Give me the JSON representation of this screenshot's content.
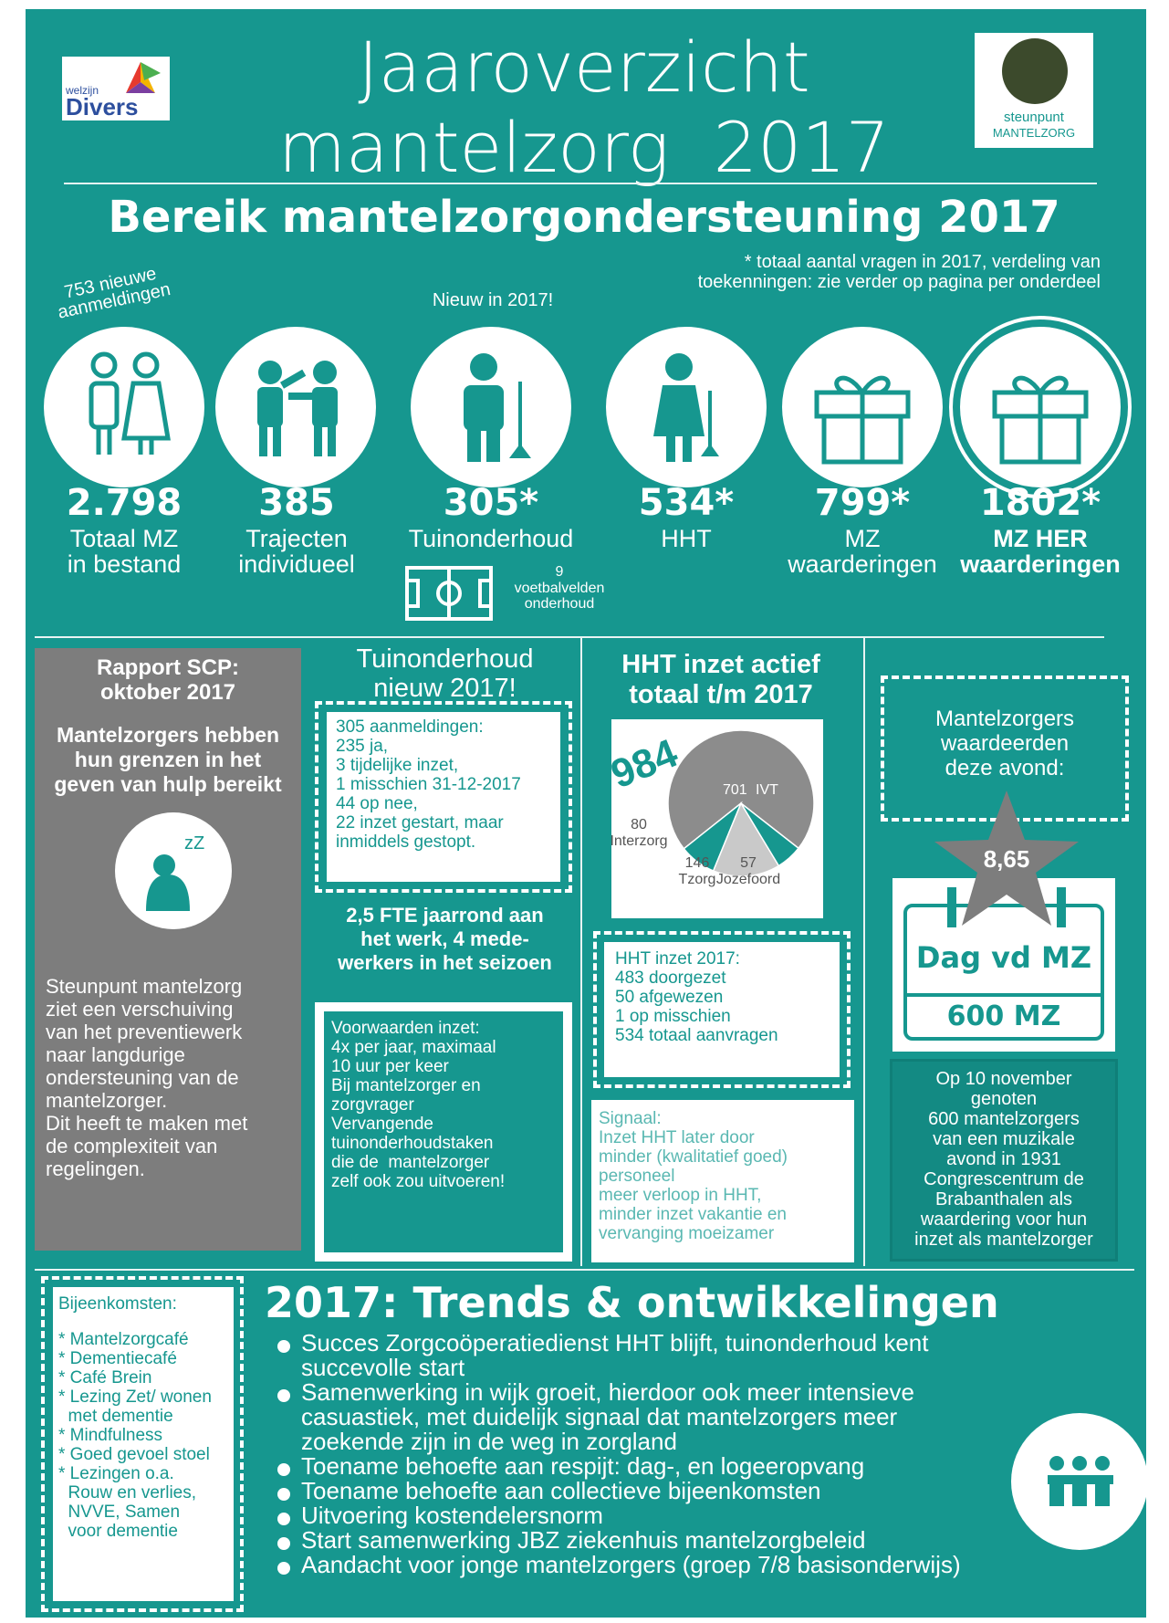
{
  "header": {
    "logo_left": {
      "top": "welzijn",
      "bottom": "Divers"
    },
    "title": [
      "Jaaroverzicht",
      "mantelzorg  2017"
    ],
    "logo_right": {
      "top": "steunpunt",
      "bottom": "MANTELZORG"
    }
  },
  "reach": {
    "title": "Bereik mantelzorgondersteuning  2017",
    "note": [
      "* totaal aantal vragen in 2017, verdeling van",
      "toekenningen: zie verder op pagina per onderdeel"
    ],
    "new_registrations": [
      "753 nieuwe",
      "aanmeldingen"
    ],
    "new_label": "Nieuw in 2017!",
    "stats": [
      {
        "value": "2.798",
        "label": [
          "Totaal MZ",
          "in bestand"
        ]
      },
      {
        "value": "385",
        "label": [
          "Trajecten",
          "individueel"
        ]
      },
      {
        "value": "305*",
        "label": [
          "Tuinonderhoud"
        ]
      },
      {
        "value": "534*",
        "label": [
          "HHT"
        ]
      },
      {
        "value": "799*",
        "label": [
          "MZ",
          "waarderingen"
        ]
      },
      {
        "value": "1802*",
        "label": [
          "MZ HER",
          "waarderingen"
        ]
      }
    ],
    "football": {
      "count": "9",
      "label": [
        "voetbalvelden",
        "onderhoud"
      ]
    }
  },
  "scp": {
    "title": [
      "Rapport SCP:",
      "oktober 2017"
    ],
    "subtitle": [
      "Mantelzorgers hebben",
      "hun grenzen in het",
      "geven van hulp bereikt"
    ],
    "body": [
      "Steunpunt mantelzorg",
      "ziet een verschuiving",
      "van het preventiewerk",
      "naar langdurige",
      "ondersteuning van de",
      "mantelzorger.",
      "Dit heeft te maken met",
      "de complexiteit van",
      "regelingen."
    ]
  },
  "garden": {
    "title": [
      "Tuinonderhoud",
      "nieuw 2017!"
    ],
    "box": [
      "305 aanmeldingen:",
      "",
      "235 ja,",
      "3 tijdelijke inzet,",
      "1 misschien 31-12-2017",
      "44 op nee,",
      "22 inzet gestart, maar",
      "inmiddels gestopt."
    ],
    "fte": [
      "2,5 FTE jaarrond aan",
      "het werk, 4 mede-",
      "werkers in het seizoen"
    ],
    "conditions": [
      "Voorwaarden inzet:",
      "",
      "4x per jaar, maximaal",
      "10 uur per keer",
      "",
      "Bij mantelzorger en",
      "zorgvrager",
      "",
      "Vervangende",
      "tuinonderhoudstaken",
      "die de  mantelzorger",
      "zelf ook zou uitvoeren!"
    ]
  },
  "hht": {
    "title": [
      "HHT inzet actief",
      "totaal t/m 2017"
    ],
    "pie": {
      "total": "984",
      "slices": [
        {
          "value": 701,
          "name": "IVT",
          "color": "#8c8c8c"
        },
        {
          "value": 80,
          "name": "Interzorg",
          "color": "#16978f"
        },
        {
          "value": 146,
          "name": "Tzorg",
          "color": "#c9c9c9"
        },
        {
          "value": 57,
          "name": "Jozefoord",
          "color": "#16978f"
        }
      ]
    },
    "box": [
      "HHT inzet 2017:",
      "483 doorgezet",
      "50 afgewezen",
      "1 op misschien",
      "534 totaal aanvragen"
    ],
    "signal": [
      "Signaal:",
      "Inzet HHT later door",
      "minder (kwalitatief goed)",
      "personeel",
      "meer verloop in HHT,",
      "minder inzet vakantie en",
      "vervanging moeizamer"
    ]
  },
  "evening": {
    "box": [
      "Mantelzorgers",
      "waardeerden",
      "deze avond:"
    ],
    "score": "8,65",
    "calendar": "Dag vd MZ",
    "count": "600 MZ",
    "text": [
      "Op 10 november",
      "genoten",
      "600 mantelzorgers",
      "van een muzikale",
      "avond in 1931",
      "Congrescentrum de",
      "Brabanthalen als",
      "waardering voor hun",
      "inzet als mantelzorger"
    ]
  },
  "trends": {
    "meetings_title": "Bijeenkomsten:",
    "meetings": [
      "* Mantelzorgcafé",
      "* Dementiecafé",
      "* Café Brein",
      "* Lezing Zet/ wonen",
      "  met dementie",
      "* Mindfulness",
      "* Goed gevoel stoel",
      "* Lezingen o.a.",
      "  Rouw en verlies,",
      "  NVVE, Samen",
      "  voor dementie"
    ],
    "title": "2017: Trends & ontwikkelingen",
    "bullets": [
      [
        "Succes Zorgcoöperatiedienst HHT blijft, tuinonderhoud kent",
        "succevolle start"
      ],
      [
        "Samenwerking in wijk groeit, hierdoor ook meer intensieve",
        "casuastiek, met duidelijk signaal dat mantelzorgers meer",
        "zoekende zijn in de weg in zorgland"
      ],
      [
        "Toename behoefte aan respijt: dag-, en logeeropvang"
      ],
      [
        "Toename behoefte aan collectieve bijeenkomsten"
      ],
      [
        "Uitvoering kostendelersnorm"
      ],
      [
        "Start samenwerking JBZ ziekenhuis mantelzorgbeleid"
      ],
      [
        "Aandacht voor jonge mantelzorgers (groep 7/8 basisonderwijs)"
      ]
    ]
  }
}
